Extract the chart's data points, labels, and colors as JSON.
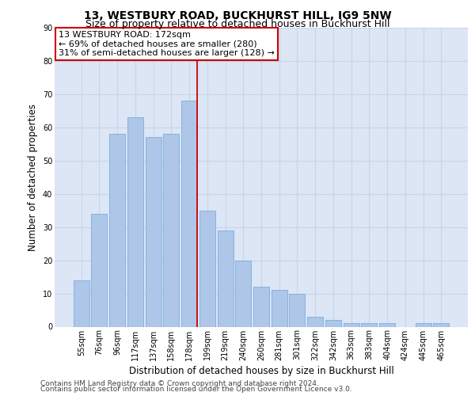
{
  "title": "13, WESTBURY ROAD, BUCKHURST HILL, IG9 5NW",
  "subtitle": "Size of property relative to detached houses in Buckhurst Hill",
  "xlabel": "Distribution of detached houses by size in Buckhurst Hill",
  "ylabel": "Number of detached properties",
  "categories": [
    "55sqm",
    "76sqm",
    "96sqm",
    "117sqm",
    "137sqm",
    "158sqm",
    "178sqm",
    "199sqm",
    "219sqm",
    "240sqm",
    "260sqm",
    "281sqm",
    "301sqm",
    "322sqm",
    "342sqm",
    "363sqm",
    "383sqm",
    "404sqm",
    "424sqm",
    "445sqm",
    "465sqm"
  ],
  "values": [
    14,
    34,
    58,
    63,
    57,
    58,
    68,
    35,
    29,
    20,
    12,
    11,
    10,
    3,
    2,
    1,
    1,
    1,
    0,
    1,
    1
  ],
  "bar_color": "#aec6e8",
  "bar_edge_color": "#7aade0",
  "grid_color": "#c8d4e8",
  "background_color": "#dce6f5",
  "vline_x_index": 6,
  "vline_color": "#cc0000",
  "annotation_text": "13 WESTBURY ROAD: 172sqm\n← 69% of detached houses are smaller (280)\n31% of semi-detached houses are larger (128) →",
  "annotation_box_facecolor": "#ffffff",
  "annotation_box_edgecolor": "#cc0000",
  "ylim": [
    0,
    90
  ],
  "yticks": [
    0,
    10,
    20,
    30,
    40,
    50,
    60,
    70,
    80,
    90
  ],
  "footer1": "Contains HM Land Registry data © Crown copyright and database right 2024.",
  "footer2": "Contains public sector information licensed under the Open Government Licence v3.0.",
  "title_fontsize": 10,
  "subtitle_fontsize": 9,
  "label_fontsize": 8.5,
  "tick_fontsize": 7,
  "annotation_fontsize": 8,
  "footer_fontsize": 6.5
}
